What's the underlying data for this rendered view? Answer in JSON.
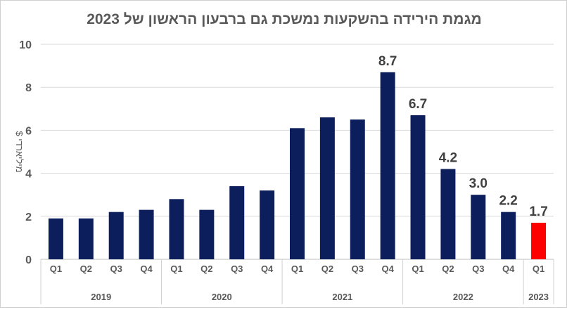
{
  "chart_data": {
    "type": "bar",
    "title": "מגמת הירידה בהשקעות נמשכת גם ברבעון הראשון של 2023",
    "ylabel": "מיליארדי $",
    "xlabel": "",
    "ylim": [
      0,
      10
    ],
    "yticks": [
      0,
      2,
      4,
      6,
      8,
      10
    ],
    "grid": true,
    "groups": [
      {
        "year": "2019",
        "quarters": [
          "Q1",
          "Q2",
          "Q3",
          "Q4"
        ]
      },
      {
        "year": "2020",
        "quarters": [
          "Q1",
          "Q2",
          "Q3",
          "Q4"
        ]
      },
      {
        "year": "2021",
        "quarters": [
          "Q1",
          "Q2",
          "Q3",
          "Q4"
        ]
      },
      {
        "year": "2022",
        "quarters": [
          "Q1",
          "Q2",
          "Q3",
          "Q4"
        ]
      },
      {
        "year": "2023",
        "quarters": [
          "Q1"
        ]
      }
    ],
    "values": [
      1.9,
      1.9,
      2.2,
      2.3,
      2.8,
      2.3,
      3.4,
      3.2,
      6.1,
      6.6,
      6.5,
      8.7,
      6.7,
      4.2,
      3.0,
      2.2,
      1.7
    ],
    "data_labels": [
      null,
      null,
      null,
      null,
      null,
      null,
      null,
      null,
      null,
      null,
      null,
      "8.7",
      "6.7",
      "4.2",
      "3.0",
      "2.2",
      "1.7"
    ],
    "colors": {
      "bar": "#0c1f5c",
      "highlight": "#ff0000",
      "grid": "#d9d9d9",
      "text": "#595959"
    },
    "highlight_index": 16
  }
}
